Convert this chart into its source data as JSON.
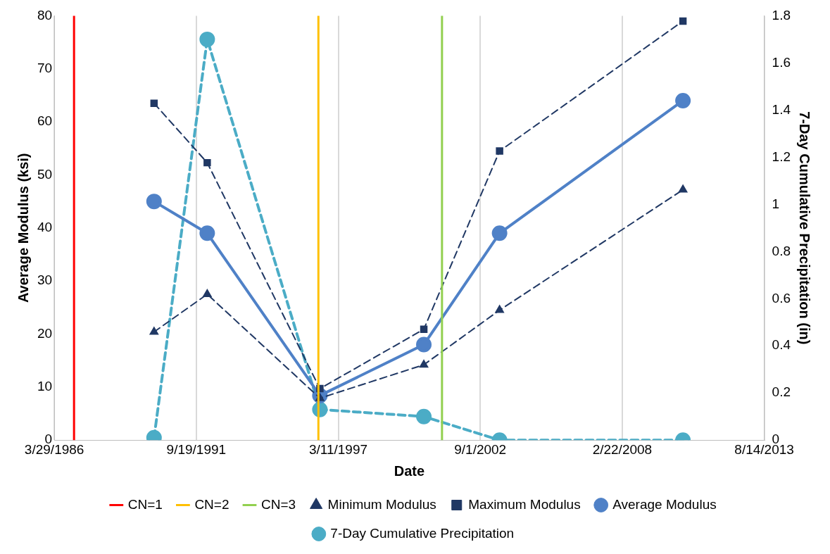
{
  "chart_data": {
    "type": "line",
    "xlabel": "Date",
    "ylabel": "Average Modulus (ksi)",
    "y2label": "7-Day Cumulative Precipitation (in)",
    "xlim": [
      "1986-03-29",
      "2013-08-14"
    ],
    "xticks": [
      {
        "value": "1986-03-29",
        "label": "3/29/1986"
      },
      {
        "value": "1991-09-19",
        "label": "9/19/1991"
      },
      {
        "value": "1997-03-11",
        "label": "3/11/1997"
      },
      {
        "value": "2002-09-01",
        "label": "9/1/2002"
      },
      {
        "value": "2008-02-22",
        "label": "2/22/2008"
      },
      {
        "value": "2013-08-14",
        "label": "8/14/2013"
      }
    ],
    "ylim": [
      0,
      80
    ],
    "yticks": [
      0,
      10,
      20,
      30,
      40,
      50,
      60,
      70,
      80
    ],
    "y2lim": [
      0,
      1.8
    ],
    "y2ticks": [
      0,
      0.2,
      0.4,
      0.6,
      0.8,
      1,
      1.2,
      1.4,
      1.6,
      1.8
    ],
    "grid": "x",
    "legend": "bottom",
    "ref_lines": [
      {
        "axis": "x",
        "value": "1987-01-01",
        "label": "CN=1",
        "color": "#ff0000"
      },
      {
        "axis": "x",
        "value": "1996-06-04",
        "label": "CN=2",
        "color": "#ffc000"
      },
      {
        "axis": "x",
        "value": "2001-03-11",
        "label": "CN=3",
        "color": "#92d050"
      }
    ],
    "series": [
      {
        "name": "Average Modulus",
        "color": "#4f81c7",
        "marker": "circle",
        "line_style": "solid",
        "x": [
          "1990-02-01",
          "1992-02-20",
          "1996-06-25",
          "2000-06-28",
          "2003-05-31",
          "2010-06-26"
        ],
        "values": [
          45,
          39,
          8.4,
          18,
          39,
          64
        ]
      },
      {
        "name": "Minimum Modulus",
        "color": "#203864",
        "marker": "triangle",
        "line_style": "dashed",
        "x": [
          "1990-02-01",
          "1992-02-20",
          "1996-06-25",
          "2000-06-28",
          "2003-05-31",
          "2010-06-26"
        ],
        "values": [
          20.4,
          27.5,
          7.9,
          14.2,
          24.5,
          47.2
        ]
      },
      {
        "name": "Maximum Modulus",
        "color": "#203864",
        "marker": "square",
        "line_style": "dashed",
        "x": [
          "1990-02-01",
          "1992-02-20",
          "1996-06-25",
          "2000-06-28",
          "2003-05-31",
          "2010-06-26"
        ],
        "values": [
          63.5,
          52.3,
          9.7,
          20.9,
          54.5,
          79
        ]
      },
      {
        "name": "7-Day Cumulative Precipitation",
        "color": "#4bacc6",
        "marker": "circle",
        "line_style": "dashed",
        "axis": "y2",
        "x": [
          "1990-02-01",
          "1992-02-20",
          "1996-06-25",
          "2000-06-28",
          "2003-05-31",
          "2010-06-26"
        ],
        "values": [
          0.01,
          1.7,
          0.13,
          0.1,
          0,
          0
        ]
      }
    ]
  }
}
